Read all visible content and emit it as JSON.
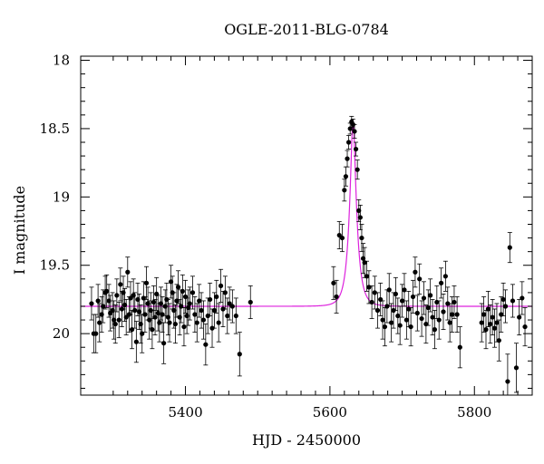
{
  "chart_data": {
    "type": "scatter",
    "title": "OGLE-2011-BLG-0784",
    "xlabel": "HJD - 2450000",
    "ylabel": "I magnitude",
    "xlim": [
      5255,
      5880
    ],
    "ylim": [
      20.45,
      17.97
    ],
    "y_inverted": true,
    "x_ticks": [
      5400,
      5600,
      5800
    ],
    "y_ticks": [
      18,
      18.5,
      19,
      19.5,
      20
    ],
    "x_tick_labels": [
      "5400",
      "5600",
      "5800"
    ],
    "y_tick_labels": [
      "18",
      "18.5",
      "19",
      "19.5",
      "20"
    ],
    "grid": false,
    "legend": "none",
    "colors": {
      "points": "#000000",
      "model": "#dd22dd"
    },
    "series": [
      {
        "kind": "points_with_errorbars",
        "points": [
          [
            5270,
            19.78,
            0.12
          ],
          [
            5273,
            20.0,
            0.14
          ],
          [
            5276,
            20.0,
            0.14
          ],
          [
            5279,
            19.76,
            0.12
          ],
          [
            5281,
            19.92,
            0.14
          ],
          [
            5284,
            19.86,
            0.13
          ],
          [
            5286,
            19.8,
            0.12
          ],
          [
            5289,
            19.7,
            0.12
          ],
          [
            5291,
            19.69,
            0.12
          ],
          [
            5294,
            19.76,
            0.12
          ],
          [
            5296,
            19.85,
            0.13
          ],
          [
            5299,
            19.83,
            0.13
          ],
          [
            5301,
            19.9,
            0.14
          ],
          [
            5303,
            19.93,
            0.14
          ],
          [
            5305,
            19.72,
            0.12
          ],
          [
            5308,
            19.9,
            0.13
          ],
          [
            5310,
            19.64,
            0.12
          ],
          [
            5312,
            19.82,
            0.13
          ],
          [
            5314,
            19.7,
            0.12
          ],
          [
            5316,
            19.79,
            0.12
          ],
          [
            5318,
            19.88,
            0.13
          ],
          [
            5320,
            19.55,
            0.11
          ],
          [
            5322,
            19.86,
            0.13
          ],
          [
            5324,
            19.74,
            0.12
          ],
          [
            5326,
            19.97,
            0.14
          ],
          [
            5328,
            19.72,
            0.12
          ],
          [
            5330,
            19.83,
            0.13
          ],
          [
            5332,
            20.06,
            0.15
          ],
          [
            5334,
            19.75,
            0.12
          ],
          [
            5336,
            19.84,
            0.13
          ],
          [
            5338,
            19.93,
            0.14
          ],
          [
            5340,
            20.0,
            0.14
          ],
          [
            5342,
            19.74,
            0.12
          ],
          [
            5344,
            19.86,
            0.13
          ],
          [
            5346,
            19.63,
            0.12
          ],
          [
            5348,
            19.78,
            0.12
          ],
          [
            5350,
            19.9,
            0.14
          ],
          [
            5352,
            19.83,
            0.13
          ],
          [
            5354,
            19.97,
            0.14
          ],
          [
            5356,
            19.77,
            0.12
          ],
          [
            5358,
            19.88,
            0.13
          ],
          [
            5360,
            19.71,
            0.12
          ],
          [
            5362,
            19.85,
            0.13
          ],
          [
            5364,
            19.92,
            0.14
          ],
          [
            5366,
            19.78,
            0.12
          ],
          [
            5368,
            19.86,
            0.13
          ],
          [
            5370,
            20.07,
            0.15
          ],
          [
            5372,
            19.8,
            0.12
          ],
          [
            5374,
            19.75,
            0.12
          ],
          [
            5376,
            19.88,
            0.13
          ],
          [
            5378,
            19.92,
            0.14
          ],
          [
            5380,
            19.62,
            0.12
          ],
          [
            5382,
            19.7,
            0.12
          ],
          [
            5384,
            19.83,
            0.13
          ],
          [
            5386,
            19.93,
            0.14
          ],
          [
            5388,
            19.76,
            0.12
          ],
          [
            5390,
            19.66,
            0.12
          ],
          [
            5392,
            19.88,
            0.13
          ],
          [
            5394,
            19.8,
            0.12
          ],
          [
            5396,
            19.69,
            0.12
          ],
          [
            5398,
            19.95,
            0.14
          ],
          [
            5400,
            19.73,
            0.12
          ],
          [
            5402,
            19.87,
            0.13
          ],
          [
            5404,
            19.81,
            0.13
          ],
          [
            5406,
            19.78,
            0.12
          ],
          [
            5410,
            19.7,
            0.12
          ],
          [
            5413,
            19.86,
            0.13
          ],
          [
            5416,
            19.92,
            0.14
          ],
          [
            5419,
            19.76,
            0.12
          ],
          [
            5422,
            19.83,
            0.13
          ],
          [
            5425,
            19.9,
            0.14
          ],
          [
            5428,
            20.08,
            0.15
          ],
          [
            5431,
            19.87,
            0.13
          ],
          [
            5434,
            19.75,
            0.12
          ],
          [
            5437,
            19.96,
            0.14
          ],
          [
            5440,
            19.83,
            0.13
          ],
          [
            5443,
            19.73,
            0.12
          ],
          [
            5446,
            19.92,
            0.14
          ],
          [
            5449,
            19.65,
            0.12
          ],
          [
            5452,
            19.82,
            0.13
          ],
          [
            5455,
            19.7,
            0.12
          ],
          [
            5458,
            19.87,
            0.13
          ],
          [
            5461,
            19.78,
            0.12
          ],
          [
            5465,
            19.8,
            0.12
          ],
          [
            5470,
            19.87,
            0.13
          ],
          [
            5475,
            20.15,
            0.16
          ],
          [
            5490,
            19.77,
            0.12
          ],
          [
            5605,
            19.63,
            0.12
          ],
          [
            5609,
            19.73,
            0.12
          ],
          [
            5613,
            19.28,
            0.1
          ],
          [
            5617,
            19.3,
            0.1
          ],
          [
            5620,
            18.95,
            0.08
          ],
          [
            5622,
            18.85,
            0.07
          ],
          [
            5624,
            18.72,
            0.06
          ],
          [
            5626,
            18.6,
            0.05
          ],
          [
            5628,
            18.5,
            0.04
          ],
          [
            5630,
            18.45,
            0.04
          ],
          [
            5632,
            18.47,
            0.04
          ],
          [
            5634,
            18.52,
            0.05
          ],
          [
            5636,
            18.65,
            0.05
          ],
          [
            5638,
            18.8,
            0.07
          ],
          [
            5640,
            19.1,
            0.08
          ],
          [
            5642,
            19.15,
            0.09
          ],
          [
            5644,
            19.3,
            0.1
          ],
          [
            5646,
            19.45,
            0.11
          ],
          [
            5648,
            19.48,
            0.11
          ],
          [
            5651,
            19.58,
            0.11
          ],
          [
            5654,
            19.66,
            0.12
          ],
          [
            5658,
            19.77,
            0.12
          ],
          [
            5662,
            19.7,
            0.12
          ],
          [
            5666,
            19.83,
            0.13
          ],
          [
            5670,
            19.75,
            0.12
          ],
          [
            5673,
            19.9,
            0.14
          ],
          [
            5676,
            19.95,
            0.14
          ],
          [
            5679,
            19.8,
            0.12
          ],
          [
            5682,
            19.68,
            0.12
          ],
          [
            5685,
            19.92,
            0.14
          ],
          [
            5688,
            19.83,
            0.13
          ],
          [
            5691,
            19.71,
            0.12
          ],
          [
            5694,
            19.87,
            0.13
          ],
          [
            5697,
            19.94,
            0.14
          ],
          [
            5700,
            19.76,
            0.12
          ],
          [
            5703,
            19.68,
            0.12
          ],
          [
            5706,
            19.9,
            0.14
          ],
          [
            5709,
            19.82,
            0.13
          ],
          [
            5712,
            19.95,
            0.14
          ],
          [
            5715,
            19.73,
            0.12
          ],
          [
            5718,
            19.55,
            0.11
          ],
          [
            5721,
            19.85,
            0.13
          ],
          [
            5724,
            19.6,
            0.11
          ],
          [
            5727,
            19.89,
            0.13
          ],
          [
            5730,
            19.74,
            0.12
          ],
          [
            5733,
            19.93,
            0.14
          ],
          [
            5736,
            19.81,
            0.13
          ],
          [
            5739,
            19.72,
            0.12
          ],
          [
            5742,
            19.88,
            0.13
          ],
          [
            5745,
            19.97,
            0.14
          ],
          [
            5748,
            19.77,
            0.12
          ],
          [
            5751,
            19.9,
            0.14
          ],
          [
            5754,
            19.63,
            0.11
          ],
          [
            5757,
            19.84,
            0.13
          ],
          [
            5760,
            19.58,
            0.11
          ],
          [
            5763,
            19.78,
            0.12
          ],
          [
            5766,
            19.92,
            0.14
          ],
          [
            5769,
            19.86,
            0.13
          ],
          [
            5772,
            19.77,
            0.12
          ],
          [
            5776,
            19.86,
            0.13
          ],
          [
            5780,
            20.1,
            0.15
          ],
          [
            5810,
            19.92,
            0.14
          ],
          [
            5813,
            19.86,
            0.13
          ],
          [
            5816,
            19.97,
            0.14
          ],
          [
            5819,
            19.82,
            0.13
          ],
          [
            5822,
            19.93,
            0.14
          ],
          [
            5825,
            19.88,
            0.13
          ],
          [
            5828,
            19.96,
            0.14
          ],
          [
            5831,
            19.92,
            0.14
          ],
          [
            5834,
            20.05,
            0.15
          ],
          [
            5837,
            19.86,
            0.13
          ],
          [
            5840,
            19.75,
            0.12
          ],
          [
            5843,
            19.8,
            0.12
          ],
          [
            5846,
            20.35,
            0.2
          ],
          [
            5849,
            19.37,
            0.11
          ],
          [
            5853,
            19.76,
            0.12
          ],
          [
            5858,
            20.25,
            0.18
          ],
          [
            5862,
            19.88,
            0.13
          ],
          [
            5866,
            19.74,
            0.12
          ],
          [
            5870,
            19.95,
            0.14
          ]
        ]
      },
      {
        "kind": "model_curve",
        "baseline": 19.8,
        "peak": 18.45,
        "t0": 5632,
        "tE": 10
      }
    ]
  }
}
